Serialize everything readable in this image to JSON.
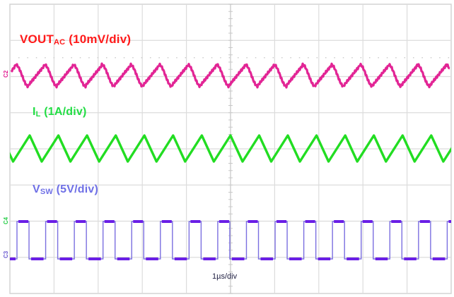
{
  "chart_data": {
    "type": "line",
    "title": "",
    "xlabel": "1µs/div",
    "ylabel": "",
    "grid": true,
    "grid_divisions": {
      "x": 10,
      "y": 8
    },
    "x_range_us": [
      0,
      10
    ],
    "series": [
      {
        "name": "VOUT_AC",
        "label_main": "VOUT",
        "label_sub": "AC",
        "label_suffix": " (10mV/div)",
        "scale": "10mV/div",
        "channel": "C2",
        "color": "#e0198f",
        "label_color": "#ff1a1a",
        "shape": "ripple",
        "period_us": 0.65,
        "peak_to_peak_div": 0.6
      },
      {
        "name": "IL",
        "label_main": "I",
        "label_sub": "L",
        "label_suffix": " (1A/div)",
        "scale": "1A/div",
        "channel": "C4",
        "color": "#22dd22",
        "label_color": "#22dd44",
        "shape": "triangle",
        "period_us": 0.65,
        "peak_to_peak_div": 0.7
      },
      {
        "name": "VSW",
        "label_main": "V",
        "label_sub": "SW",
        "label_suffix": " (5V/div)",
        "scale": "5V/div",
        "channel": "C3",
        "color": "#6a1ee6",
        "label_color": "#6f70e6",
        "shape": "square",
        "period_us": 0.65,
        "duty_cycle": 0.42,
        "amplitude_div": 1.05
      }
    ],
    "annotations": [
      "1µs/div"
    ]
  },
  "markers": {
    "c2": "C2",
    "c4": "C4",
    "c3": "C3"
  },
  "labels": {
    "time": "1µs/div"
  }
}
